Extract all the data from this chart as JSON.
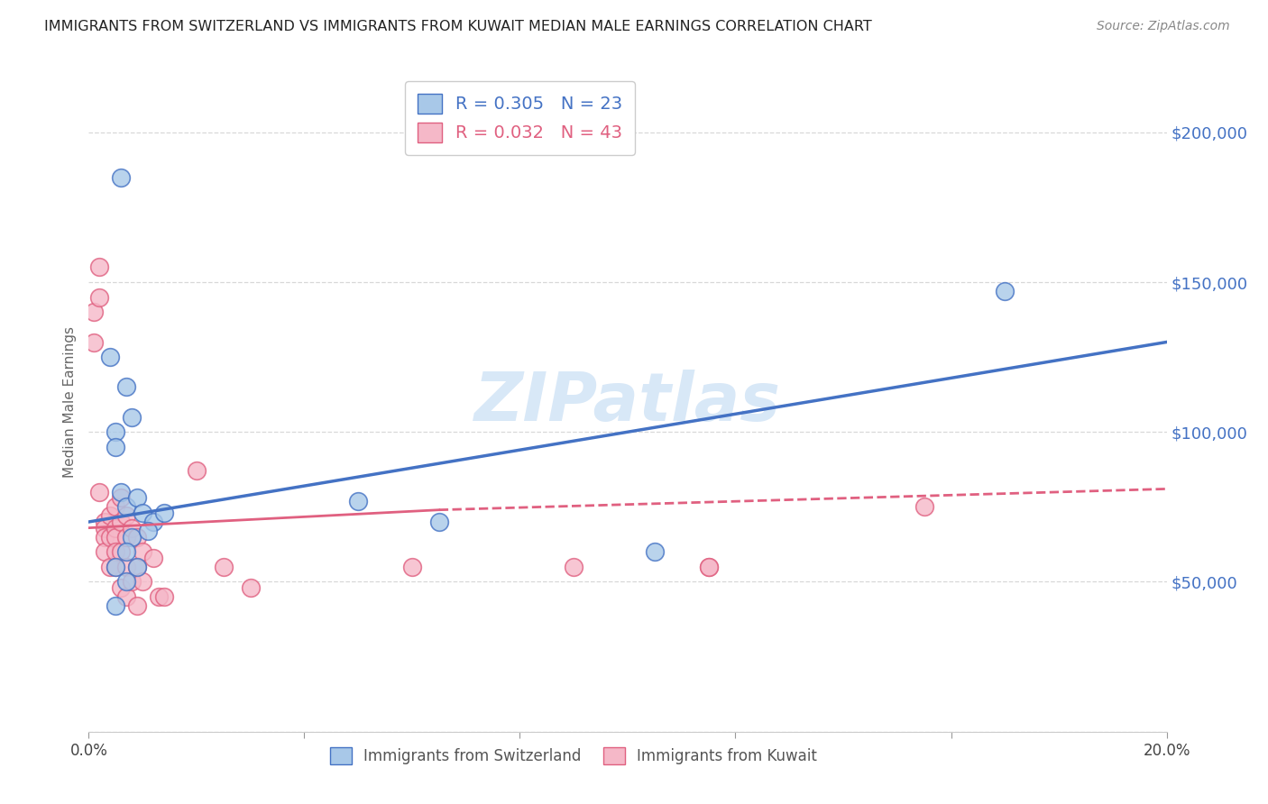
{
  "title": "IMMIGRANTS FROM SWITZERLAND VS IMMIGRANTS FROM KUWAIT MEDIAN MALE EARNINGS CORRELATION CHART",
  "source": "Source: ZipAtlas.com",
  "ylabel": "Median Male Earnings",
  "xlim": [
    0,
    0.2
  ],
  "ylim": [
    0,
    220000
  ],
  "yticks": [
    0,
    50000,
    100000,
    150000,
    200000
  ],
  "ytick_labels": [
    "",
    "$50,000",
    "$100,000",
    "$150,000",
    "$200,000"
  ],
  "xticks": [
    0.0,
    0.04,
    0.08,
    0.12,
    0.16,
    0.2
  ],
  "xtick_labels": [
    "0.0%",
    "",
    "",
    "",
    "",
    "20.0%"
  ],
  "swiss_R": 0.305,
  "swiss_N": 23,
  "kuwait_R": 0.032,
  "kuwait_N": 43,
  "swiss_color": "#a8c8e8",
  "kuwait_color": "#f5b8c8",
  "swiss_line_color": "#4472c4",
  "kuwait_line_color": "#e06080",
  "background_color": "#ffffff",
  "grid_color": "#d8d8d8",
  "watermark": "ZIPatlas",
  "swiss_x": [
    0.006,
    0.004,
    0.005,
    0.007,
    0.008,
    0.005,
    0.006,
    0.007,
    0.009,
    0.01,
    0.008,
    0.012,
    0.014,
    0.007,
    0.009,
    0.011,
    0.05,
    0.065,
    0.105,
    0.17,
    0.005,
    0.005,
    0.007
  ],
  "swiss_y": [
    185000,
    125000,
    100000,
    115000,
    105000,
    95000,
    80000,
    75000,
    78000,
    73000,
    65000,
    70000,
    73000,
    60000,
    55000,
    67000,
    77000,
    70000,
    60000,
    147000,
    55000,
    42000,
    50000
  ],
  "kuwait_x": [
    0.001,
    0.001,
    0.002,
    0.002,
    0.002,
    0.003,
    0.003,
    0.003,
    0.003,
    0.004,
    0.004,
    0.004,
    0.005,
    0.005,
    0.005,
    0.005,
    0.005,
    0.006,
    0.006,
    0.006,
    0.006,
    0.007,
    0.007,
    0.007,
    0.007,
    0.008,
    0.008,
    0.009,
    0.009,
    0.009,
    0.01,
    0.01,
    0.012,
    0.013,
    0.014,
    0.02,
    0.025,
    0.03,
    0.06,
    0.09,
    0.115,
    0.115,
    0.155
  ],
  "kuwait_y": [
    140000,
    130000,
    155000,
    145000,
    80000,
    70000,
    68000,
    65000,
    60000,
    72000,
    65000,
    55000,
    75000,
    68000,
    65000,
    60000,
    55000,
    78000,
    70000,
    60000,
    48000,
    72000,
    65000,
    55000,
    45000,
    68000,
    50000,
    65000,
    55000,
    42000,
    60000,
    50000,
    58000,
    45000,
    45000,
    87000,
    55000,
    48000,
    55000,
    55000,
    55000,
    55000,
    75000
  ]
}
